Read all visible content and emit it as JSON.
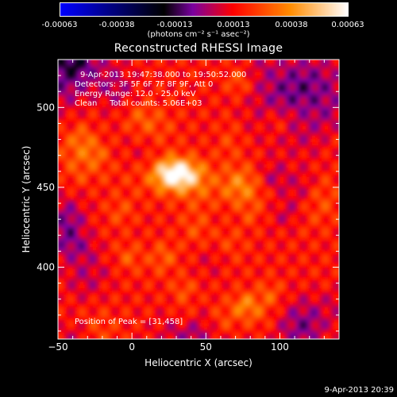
{
  "colorbar": {
    "ticks": [
      "-0.00063",
      "-0.00038",
      "-0.00013",
      "0.00013",
      "0.00038",
      "0.00063"
    ],
    "units": "(photons cm⁻² s⁻¹ asec⁻²)",
    "colors": [
      "#0000ff",
      "#000000",
      "#7a00a0",
      "#ff0000",
      "#ff8c00",
      "#ffffff"
    ]
  },
  "chart_data": {
    "type": "heatmap",
    "title": "Reconstructed RHESSI Image",
    "xlabel": "Heliocentric X (arcsec)",
    "ylabel": "Heliocentric Y (arcsec)",
    "xlim": [
      -50,
      140
    ],
    "ylim": [
      355,
      530
    ],
    "xticks": [
      -50,
      0,
      50,
      100
    ],
    "yticks": [
      400,
      450,
      500
    ],
    "xtick_labels": [
      "−50",
      "0",
      "50",
      "100"
    ],
    "ytick_labels": [
      "400",
      "450",
      "500"
    ],
    "peak": [
      31,
      458
    ],
    "annotations": [
      "9-Apr-2013 19:47:38.000 to 19:50:52.000",
      "Detectors: 3F 5F 6F 7F 8F 9F, Att 0",
      "Energy Range: 12.0 - 25.0 keV",
      "Clean     Total counts: 5.06E+03"
    ],
    "peak_label": "Position of Peak = [31,458]"
  },
  "footer": "9-Apr-2013 20:39"
}
